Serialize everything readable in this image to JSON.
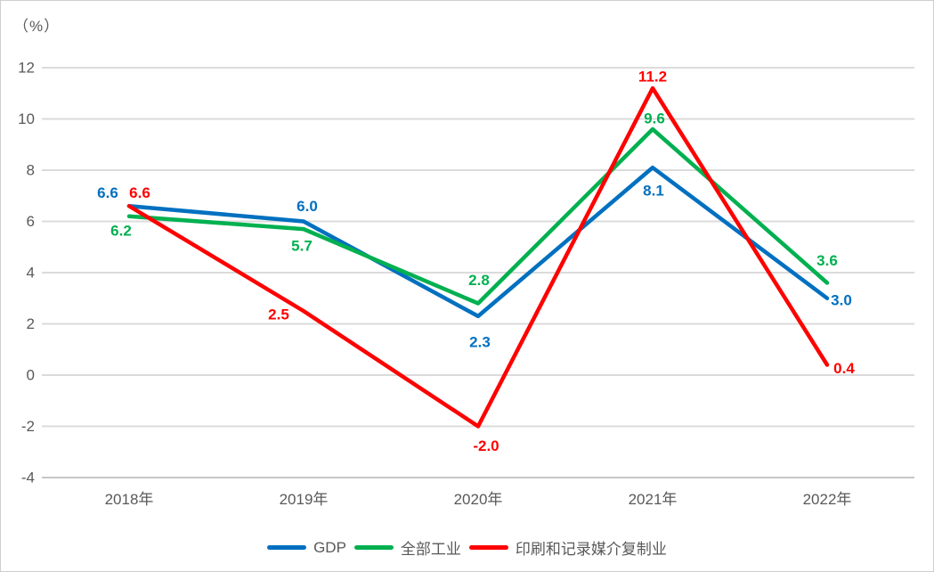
{
  "chart_data": {
    "type": "line",
    "title": "",
    "unit_label": "（%）",
    "categories": [
      "2018年",
      "2019年",
      "2020年",
      "2021年",
      "2022年"
    ],
    "series": [
      {
        "name": "GDP",
        "color": "#0070C0",
        "values": [
          6.6,
          6.0,
          2.3,
          8.1,
          3.0
        ]
      },
      {
        "name": "全部工业",
        "color": "#00B050",
        "values": [
          6.2,
          5.7,
          2.8,
          9.6,
          3.6
        ]
      },
      {
        "name": "印刷和记录媒介复制业",
        "color": "#FF0000",
        "values": [
          6.6,
          2.5,
          -2.0,
          11.2,
          0.4
        ]
      }
    ],
    "ylim": [
      -4,
      12
    ],
    "yticks": [
      12,
      10,
      8,
      6,
      4,
      2,
      0,
      -2,
      -4
    ],
    "grid": true,
    "data_labels": true,
    "label_decimals": 1,
    "legend_position": "bottom",
    "colors": {
      "axis_text": "#595959",
      "gridline": "#DBDBDB",
      "axis_line": "#C6C6C6"
    }
  }
}
